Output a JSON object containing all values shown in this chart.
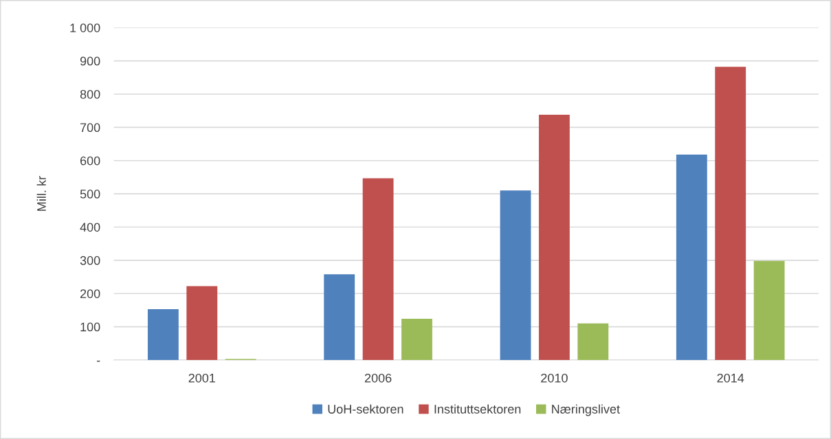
{
  "chart_data": {
    "type": "bar",
    "ylabel": "Mill. kr",
    "categories": [
      "2001",
      "2006",
      "2010",
      "2014"
    ],
    "series": [
      {
        "name": "UoH-sektoren",
        "color": "#4f81bd",
        "values": [
          153,
          258,
          510,
          618
        ]
      },
      {
        "name": "Instituttsektoren",
        "color": "#c0504d",
        "values": [
          222,
          547,
          738,
          882
        ]
      },
      {
        "name": "Næringslivet",
        "color": "#9bbb59",
        "values": [
          3,
          124,
          110,
          298
        ]
      }
    ],
    "ylim": [
      0,
      1000
    ],
    "yticks": [
      {
        "value": 0,
        "label": "-"
      },
      100,
      200,
      300,
      400,
      500,
      600,
      700,
      800,
      900,
      {
        "value": 1000,
        "label": "1 000"
      }
    ],
    "grid": "y",
    "legend": "bottom"
  }
}
